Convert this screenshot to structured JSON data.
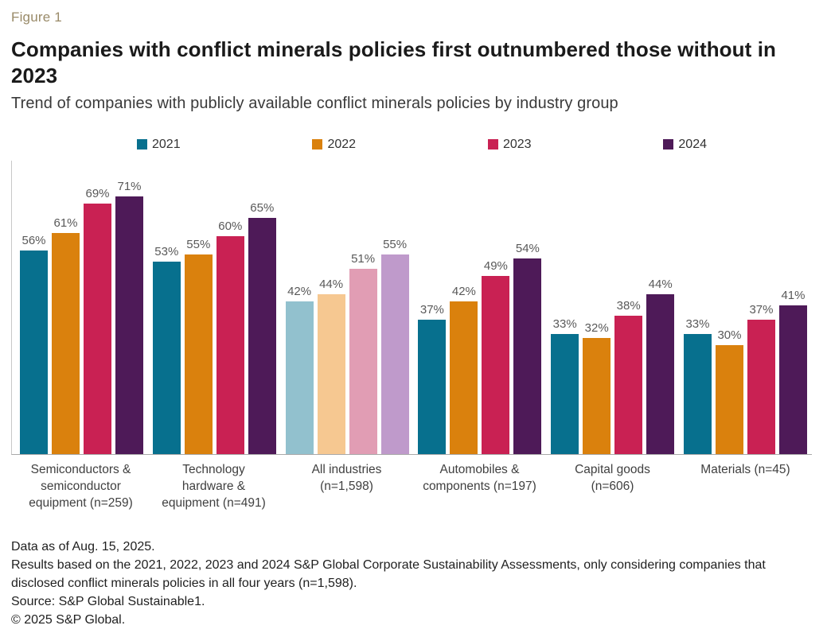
{
  "header": {
    "figure_label": "Figure 1",
    "title": "Companies with conflict minerals policies first outnumbered those without in 2023",
    "subtitle": "Trend of companies with publicly available conflict minerals policies by industry group"
  },
  "chart_data": {
    "type": "bar",
    "title": "Companies with conflict minerals policies first outnumbered those without in 2023",
    "subtitle": "Trend of companies with publicly available conflict minerals policies by industry group",
    "value_suffix": "%",
    "ylim": [
      0,
      81
    ],
    "grid": false,
    "legend_position": "top",
    "categories": [
      "Semiconductors & semiconductor equipment (n=259)",
      "Technology hardware & equipment (n=491)",
      "All industries (n=1,598)",
      "Automobiles & components (n=197)",
      "Capital goods (n=606)",
      "Materials (n=45)"
    ],
    "category_lines": [
      [
        "Semiconductors &",
        "semiconductor",
        "equipment (n=259)"
      ],
      [
        "Technology",
        "hardware &",
        "equipment (n=491)"
      ],
      [
        "All industries",
        "(n=1,598)"
      ],
      [
        "Automobiles &",
        "components (n=197)"
      ],
      [
        "Capital goods",
        "(n=606)"
      ],
      [
        "Materials (n=45)"
      ]
    ],
    "muted_category_index": 2,
    "series": [
      {
        "name": "2021",
        "color": "#07708e",
        "muted_color": "#92c1ce",
        "values": [
          56,
          53,
          42,
          37,
          33,
          33
        ]
      },
      {
        "name": "2022",
        "color": "#da810d",
        "muted_color": "#f6c891",
        "values": [
          61,
          55,
          44,
          42,
          32,
          30
        ]
      },
      {
        "name": "2023",
        "color": "#c92153",
        "muted_color": "#e19db4",
        "values": [
          69,
          60,
          51,
          49,
          38,
          37
        ]
      },
      {
        "name": "2024",
        "color": "#4e1a58",
        "muted_color": "#bf9acb",
        "values": [
          71,
          65,
          55,
          54,
          44,
          41
        ]
      }
    ]
  },
  "colors": {
    "figure_label": "#998a68",
    "title_text": "#1a1a1a",
    "subtitle_text": "#3a3a3a",
    "value_label_text": "#595959",
    "axis_line": "#a9a9a9"
  },
  "footer": {
    "lines": [
      "Data as of Aug. 15, 2025.",
      "Results based on the 2021, 2022, 2023 and 2024 S&P Global Corporate Sustainability Assessments, only considering companies that disclosed conflict minerals policies in all four years (n=1,598).",
      "Source: S&P Global Sustainable1.",
      "© 2025 S&P Global."
    ]
  }
}
